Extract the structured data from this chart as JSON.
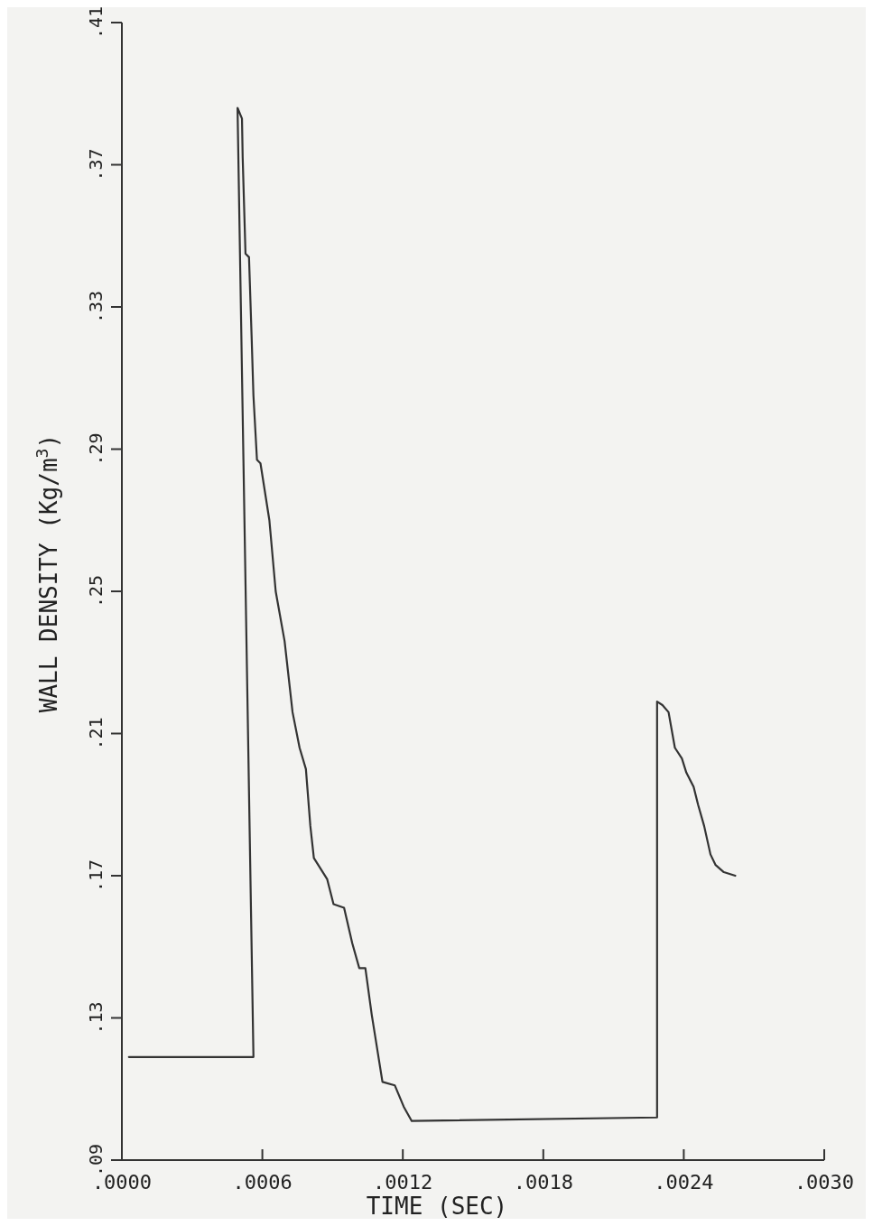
{
  "chart_data": {
    "type": "line",
    "xlabel": "TIME (SEC)",
    "ylabel": "WALL DENSITY (Kg/m$^{3}$)",
    "xlim": [
      0,
      0.003
    ],
    "ylim": [
      0.09,
      0.41
    ],
    "xticks": [
      {
        "value": 0,
        "label": ".0000"
      },
      {
        "value": 0.0006,
        "label": ".0006"
      },
      {
        "value": 0.0012,
        "label": ".0012"
      },
      {
        "value": 0.0018,
        "label": ".0018"
      },
      {
        "value": 0.0024,
        "label": ".0024"
      },
      {
        "value": 0.003,
        "label": ".0030"
      }
    ],
    "yticks": [
      {
        "value": 0.09,
        "label": ".09"
      },
      {
        "value": 0.13,
        "label": ".13"
      },
      {
        "value": 0.17,
        "label": ".17"
      },
      {
        "value": 0.21,
        "label": ".21"
      },
      {
        "value": 0.25,
        "label": ".25"
      },
      {
        "value": 0.29,
        "label": ".29"
      },
      {
        "value": 0.33,
        "label": ".33"
      },
      {
        "value": 0.37,
        "label": ".37"
      },
      {
        "value": 0.41,
        "label": ".41"
      }
    ],
    "grid": false,
    "marker": "none",
    "line_style": "solid",
    "series": [
      {
        "color": "#333333",
        "x": [
          3e-05,
          0.000562,
          0.000494,
          0.000513,
          0.000516,
          0.000528,
          0.000543,
          0.000554,
          0.000562,
          0.000577,
          0.000592,
          0.00063,
          0.000657,
          0.000695,
          0.000729,
          0.000759,
          0.000786,
          0.000805,
          0.00082,
          0.000877,
          0.000904,
          0.000949,
          0.000984,
          0.001014,
          0.00104,
          0.001067,
          0.001113,
          0.001166,
          0.001204,
          0.001238,
          0.002286,
          0.002286,
          0.002309,
          0.002335,
          0.002362,
          0.002392,
          0.002411,
          0.002442,
          0.002461,
          0.002487,
          0.002514,
          0.002536,
          0.002571,
          0.00262
        ],
        "values": [
          0.119,
          0.119,
          0.386,
          0.383,
          0.372,
          0.345,
          0.344,
          0.322,
          0.305,
          0.287,
          0.286,
          0.27,
          0.25,
          0.236,
          0.216,
          0.206,
          0.2,
          0.184,
          0.175,
          0.169,
          0.162,
          0.161,
          0.151,
          0.144,
          0.144,
          0.131,
          0.112,
          0.111,
          0.105,
          0.101,
          0.102,
          0.219,
          0.218,
          0.216,
          0.206,
          0.203,
          0.199,
          0.195,
          0.19,
          0.184,
          0.176,
          0.173,
          0.171,
          0.17
        ]
      }
    ]
  }
}
